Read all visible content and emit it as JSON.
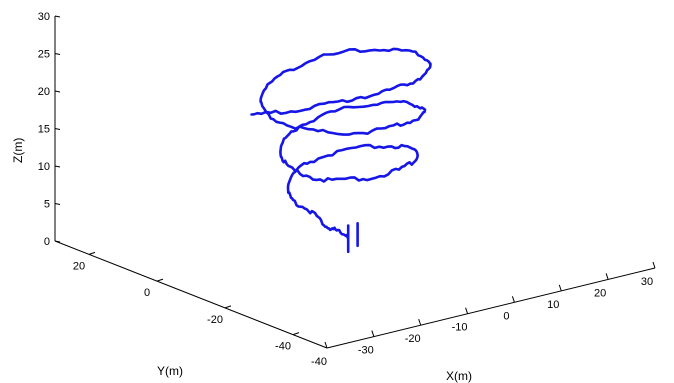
{
  "chart_data": {
    "type": "line3d",
    "xlabel": "X(m)",
    "ylabel": "Y(m)",
    "zlabel": "Z(m)",
    "xlim": [
      -40,
      30
    ],
    "ylim": [
      -50,
      30
    ],
    "zlim": [
      0,
      30
    ],
    "x_ticks": [
      "-40",
      "-30",
      "-20",
      "-10",
      "0",
      "10",
      "20",
      "30"
    ],
    "y_ticks": [
      "20",
      "0",
      "-20",
      "-40"
    ],
    "z_ticks": [
      "0",
      "5",
      "10",
      "15",
      "20",
      "25",
      "30"
    ],
    "grid": false,
    "line_color": "#1616e6",
    "series": [
      {
        "points": [
          [
            -5,
            -8,
            2
          ],
          [
            -6,
            -6,
            2.5
          ],
          [
            -7,
            -4,
            3
          ],
          [
            -8,
            -1,
            4.5
          ],
          [
            -9,
            3,
            5.5
          ],
          [
            -6,
            8,
            6.5
          ],
          [
            0,
            11,
            7.5
          ],
          [
            8,
            9,
            8.5
          ],
          [
            13,
            3,
            9.2
          ],
          [
            12,
            -5,
            9.8
          ],
          [
            5,
            -10,
            9.8
          ],
          [
            -4,
            -11,
            10.0
          ],
          [
            -11,
            -8,
            10.5
          ],
          [
            -13,
            -2,
            11.2
          ],
          [
            -10,
            5,
            12.0
          ],
          [
            -3,
            10,
            12.8
          ],
          [
            6,
            11,
            13.5
          ],
          [
            13,
            7,
            14.3
          ],
          [
            15,
            0,
            15.0
          ],
          [
            12,
            -7,
            15.6
          ],
          [
            4,
            -11,
            16.0
          ],
          [
            -5,
            -11,
            16.3
          ],
          [
            -12,
            -6,
            16.8
          ],
          [
            -15,
            1,
            17.8
          ],
          [
            -12,
            8,
            18.8
          ],
          [
            -5,
            12,
            19.8
          ],
          [
            4,
            13,
            20.6
          ],
          [
            12,
            9,
            21.2
          ],
          [
            16,
            2,
            21.4
          ],
          [
            14,
            -6,
            21.6
          ],
          [
            7,
            -12,
            21.8
          ],
          [
            -2,
            -15,
            22.1
          ],
          [
            -12,
            -16,
            22.5
          ],
          [
            -22,
            -16,
            22.8
          ],
          [
            -30,
            -14,
            23.0
          ]
        ]
      },
      {
        "points": [
          [
            -5,
            -8,
            0
          ],
          [
            -5,
            -8,
            3.5
          ]
        ]
      },
      {
        "points": [
          [
            -3,
            -8,
            0.5
          ],
          [
            -3,
            -8,
            3.5
          ]
        ]
      }
    ]
  }
}
